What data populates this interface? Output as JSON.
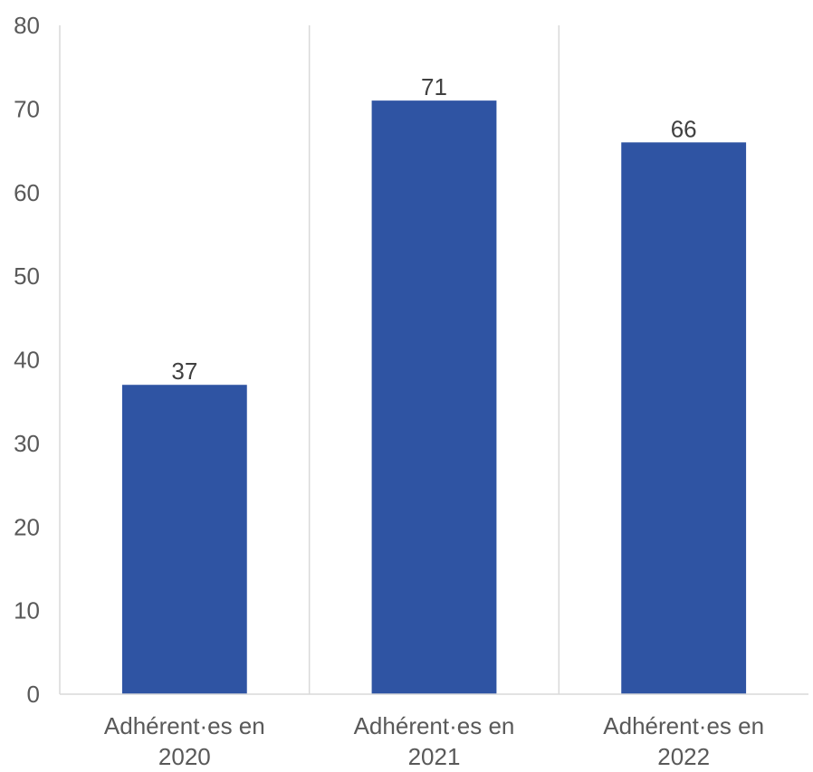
{
  "chart_data": {
    "type": "bar",
    "categories": [
      [
        "Adhérent·es en",
        "2020"
      ],
      [
        "Adhérent·es en",
        "2021"
      ],
      [
        "Adhérent·es en",
        "2022"
      ]
    ],
    "values": [
      37,
      71,
      66
    ],
    "data_labels": [
      "37",
      "71",
      "66"
    ],
    "y_ticks": [
      "0",
      "10",
      "20",
      "30",
      "40",
      "50",
      "60",
      "70",
      "80"
    ],
    "ylim": [
      0,
      80
    ],
    "bar_color": "#2F54A3",
    "divider_color": "#D9D9D9",
    "grid": false,
    "legend": "none"
  }
}
